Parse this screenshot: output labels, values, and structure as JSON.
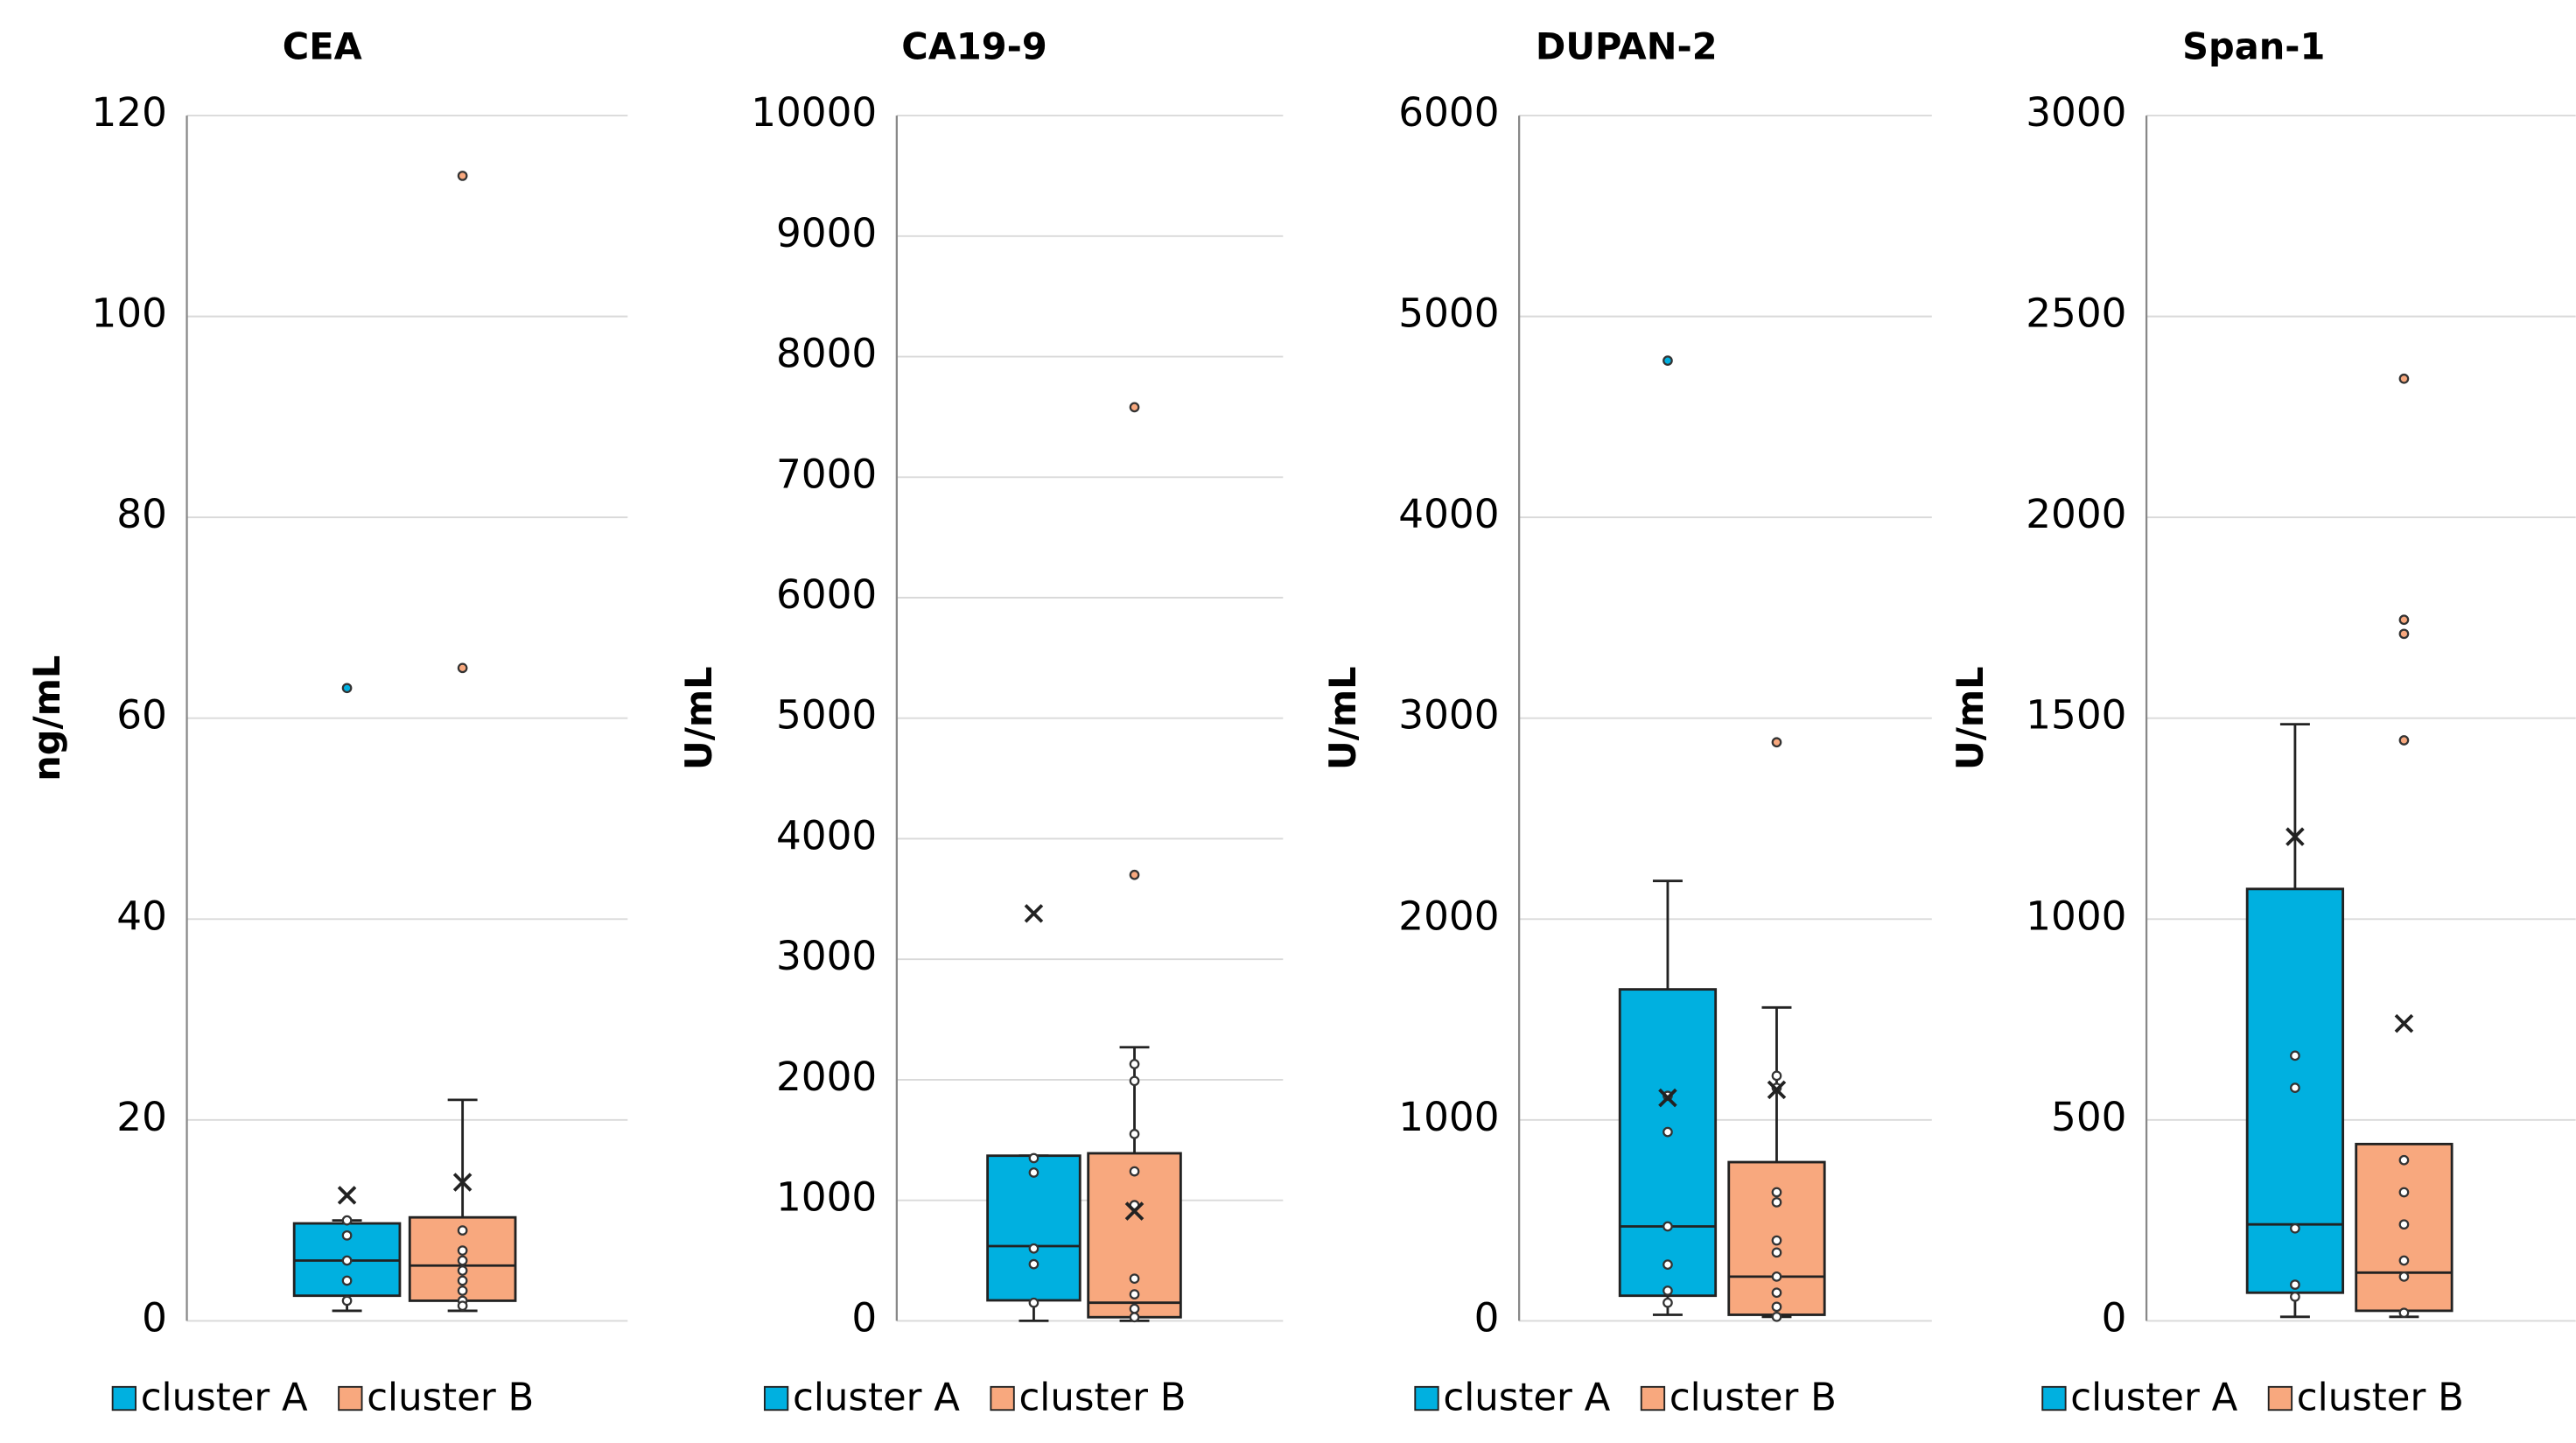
{
  "chart_data": [
    {
      "type": "box",
      "title": "CEA",
      "y_label": "ng/mL",
      "ylim": [
        0,
        120
      ],
      "yticks": [
        0,
        20,
        40,
        60,
        80,
        100,
        120
      ],
      "series": [
        {
          "name": "cluster A",
          "color": "#00b0e0",
          "min": 1,
          "q1": 2.5,
          "median": 6,
          "q3": 9.7,
          "max": 10,
          "mean": 12.5,
          "points": [
            10,
            8.5,
            6,
            4,
            2
          ],
          "outliers": [
            63
          ]
        },
        {
          "name": "cluster B",
          "color": "#f8a87e",
          "min": 1,
          "q1": 2,
          "median": 5.5,
          "q3": 10.3,
          "max": 22,
          "mean": 13.8,
          "points": [
            9,
            7,
            6,
            5,
            4,
            3,
            2,
            1.5
          ],
          "outliers": [
            65,
            114
          ]
        }
      ]
    },
    {
      "type": "box",
      "title": "CA19-9",
      "y_label": "U/mL",
      "ylim": [
        0,
        10000
      ],
      "yticks": [
        0,
        1000,
        2000,
        3000,
        4000,
        5000,
        6000,
        7000,
        8000,
        9000,
        10000
      ],
      "series": [
        {
          "name": "cluster A",
          "color": "#00b0e0",
          "min": 0,
          "q1": 170,
          "median": 620,
          "q3": 1370,
          "max": 1370,
          "mean": 3380,
          "points": [
            1350,
            1230,
            600,
            470,
            150
          ],
          "outliers": []
        },
        {
          "name": "cluster B",
          "color": "#f8a87e",
          "min": 0,
          "q1": 30,
          "median": 150,
          "q3": 1390,
          "max": 2270,
          "mean": 910,
          "points": [
            2130,
            1990,
            1550,
            1240,
            960,
            350,
            220,
            100,
            30
          ],
          "outliers": [
            3700,
            7580
          ]
        }
      ]
    },
    {
      "type": "box",
      "title": "DUPAN-2",
      "y_label": "U/mL",
      "ylim": [
        0,
        6000
      ],
      "yticks": [
        0,
        1000,
        2000,
        3000,
        4000,
        5000,
        6000
      ],
      "series": [
        {
          "name": "cluster A",
          "color": "#00b0e0",
          "min": 30,
          "q1": 125,
          "median": 470,
          "q3": 1650,
          "max": 2190,
          "mean": 1110,
          "points": [
            1120,
            940,
            470,
            280,
            150,
            90
          ],
          "outliers": [
            4780
          ]
        },
        {
          "name": "cluster B",
          "color": "#f8a87e",
          "min": 20,
          "q1": 30,
          "median": 220,
          "q3": 790,
          "max": 1560,
          "mean": 1150,
          "points": [
            1220,
            1160,
            640,
            590,
            400,
            340,
            220,
            140,
            70,
            20
          ],
          "outliers": [
            2880
          ]
        }
      ]
    },
    {
      "type": "box",
      "title": "Span-1",
      "y_label": "U/mL",
      "ylim": [
        0,
        3000
      ],
      "yticks": [
        0,
        500,
        1000,
        1500,
        2000,
        2500,
        3000
      ],
      "series": [
        {
          "name": "cluster A",
          "color": "#00b0e0",
          "min": 10,
          "q1": 70,
          "median": 240,
          "q3": 1075,
          "max": 1485,
          "mean": 1205,
          "points": [
            660,
            580,
            230,
            90,
            60
          ],
          "outliers": []
        },
        {
          "name": "cluster B",
          "color": "#f8a87e",
          "min": 10,
          "q1": 25,
          "median": 120,
          "q3": 440,
          "max": 440,
          "mean": 740,
          "points": [
            400,
            320,
            240,
            150,
            110,
            20
          ],
          "outliers": [
            2345,
            1745,
            1710,
            1445
          ]
        }
      ]
    }
  ]
}
